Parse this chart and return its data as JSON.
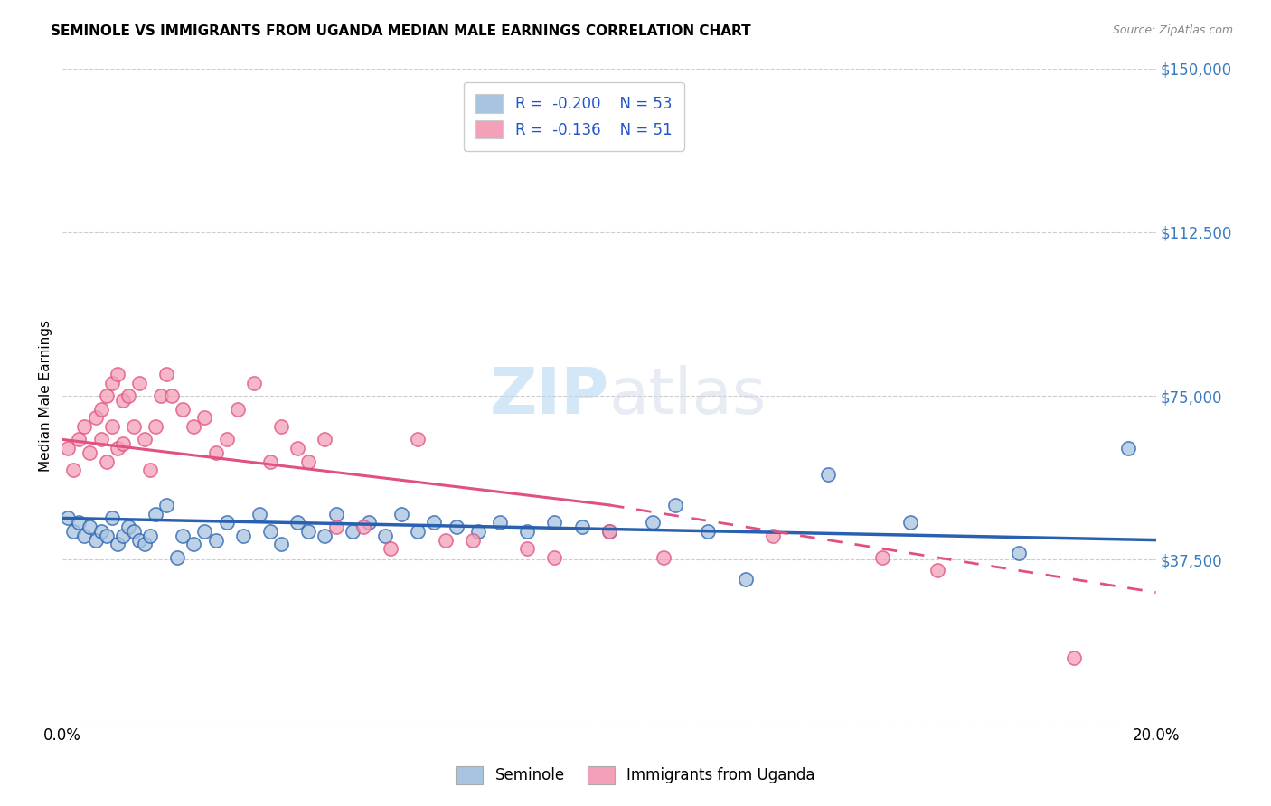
{
  "title": "SEMINOLE VS IMMIGRANTS FROM UGANDA MEDIAN MALE EARNINGS CORRELATION CHART",
  "source": "Source: ZipAtlas.com",
  "ylabel": "Median Male Earnings",
  "x_min": 0.0,
  "x_max": 0.2,
  "y_min": 0,
  "y_max": 150000,
  "ytick_vals": [
    0,
    37500,
    75000,
    112500,
    150000
  ],
  "ytick_labels": [
    "",
    "$37,500",
    "$75,000",
    "$112,500",
    "$150,000"
  ],
  "xtick_vals": [
    0.0,
    0.05,
    0.1,
    0.15,
    0.2
  ],
  "xtick_labels": [
    "0.0%",
    "",
    "",
    "",
    "20.0%"
  ],
  "seminole_R": -0.2,
  "seminole_N": 53,
  "uganda_R": -0.136,
  "uganda_N": 51,
  "seminole_color": "#a8c4e0",
  "seminole_line_color": "#2960b0",
  "uganda_color": "#f4a0b8",
  "uganda_line_color": "#e05080",
  "legend_label_1": "Seminole",
  "legend_label_2": "Immigrants from Uganda",
  "watermark_zip": "ZIP",
  "watermark_atlas": "atlas",
  "seminole_x": [
    0.001,
    0.002,
    0.003,
    0.004,
    0.005,
    0.006,
    0.007,
    0.008,
    0.009,
    0.01,
    0.011,
    0.012,
    0.013,
    0.014,
    0.015,
    0.016,
    0.017,
    0.019,
    0.021,
    0.022,
    0.024,
    0.026,
    0.028,
    0.03,
    0.033,
    0.036,
    0.038,
    0.04,
    0.043,
    0.045,
    0.048,
    0.05,
    0.053,
    0.056,
    0.059,
    0.062,
    0.065,
    0.068,
    0.072,
    0.076,
    0.08,
    0.085,
    0.09,
    0.095,
    0.1,
    0.108,
    0.112,
    0.118,
    0.125,
    0.14,
    0.155,
    0.175,
    0.195
  ],
  "seminole_y": [
    47000,
    44000,
    46000,
    43000,
    45000,
    42000,
    44000,
    43000,
    47000,
    41000,
    43000,
    45000,
    44000,
    42000,
    41000,
    43000,
    48000,
    50000,
    38000,
    43000,
    41000,
    44000,
    42000,
    46000,
    43000,
    48000,
    44000,
    41000,
    46000,
    44000,
    43000,
    48000,
    44000,
    46000,
    43000,
    48000,
    44000,
    46000,
    45000,
    44000,
    46000,
    44000,
    46000,
    45000,
    44000,
    46000,
    50000,
    44000,
    33000,
    57000,
    46000,
    39000,
    63000
  ],
  "uganda_x": [
    0.001,
    0.002,
    0.003,
    0.004,
    0.005,
    0.006,
    0.007,
    0.007,
    0.008,
    0.008,
    0.009,
    0.009,
    0.01,
    0.01,
    0.011,
    0.011,
    0.012,
    0.013,
    0.014,
    0.015,
    0.016,
    0.017,
    0.018,
    0.019,
    0.02,
    0.022,
    0.024,
    0.026,
    0.028,
    0.03,
    0.032,
    0.035,
    0.038,
    0.04,
    0.043,
    0.045,
    0.048,
    0.05,
    0.055,
    0.06,
    0.065,
    0.07,
    0.075,
    0.085,
    0.09,
    0.1,
    0.11,
    0.13,
    0.15,
    0.16,
    0.185
  ],
  "uganda_y": [
    63000,
    58000,
    65000,
    68000,
    62000,
    70000,
    72000,
    65000,
    60000,
    75000,
    78000,
    68000,
    80000,
    63000,
    74000,
    64000,
    75000,
    68000,
    78000,
    65000,
    58000,
    68000,
    75000,
    80000,
    75000,
    72000,
    68000,
    70000,
    62000,
    65000,
    72000,
    78000,
    60000,
    68000,
    63000,
    60000,
    65000,
    45000,
    45000,
    40000,
    65000,
    42000,
    42000,
    40000,
    38000,
    44000,
    38000,
    43000,
    38000,
    35000,
    15000
  ]
}
